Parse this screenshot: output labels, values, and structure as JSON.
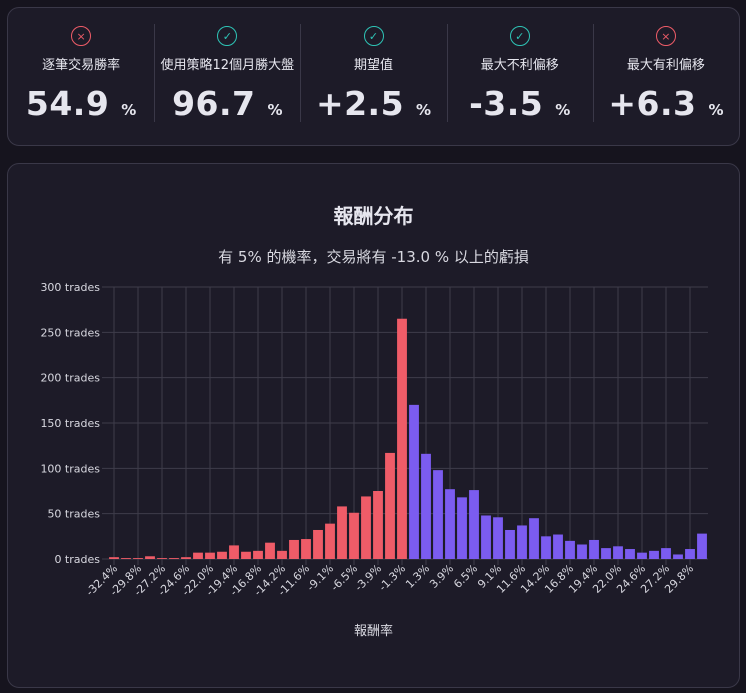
{
  "stats": [
    {
      "label": "逐筆交易勝率",
      "value": "54.9",
      "unit": "%",
      "icon": "x-icon",
      "status": "bad"
    },
    {
      "label": "使用策略12個月勝大盤",
      "value": "96.7",
      "unit": "%",
      "icon": "check-icon",
      "status": "good"
    },
    {
      "label": "期望值",
      "value": "+2.5",
      "unit": "%",
      "icon": "check-icon",
      "status": "good"
    },
    {
      "label": "最大不利偏移",
      "value": "-3.5",
      "unit": "%",
      "icon": "check-icon",
      "status": "good"
    },
    {
      "label": "最大有利偏移",
      "value": "+6.3",
      "unit": "%",
      "icon": "x-icon",
      "status": "bad"
    }
  ],
  "colors": {
    "negative": "#ef5c68",
    "positive": "#7b5cf0",
    "good": "#2ec4b6",
    "bad": "#ef5c68",
    "grid": "#3e3c4a"
  },
  "chart_data": {
    "type": "bar",
    "title": "報酬分布",
    "subtitle": "有 5% 的機率，交易將有 -13.0 % 以上的虧損",
    "xlabel": "報酬率",
    "ylabel": "",
    "ylim": [
      0,
      300
    ],
    "y_ticks": [
      0,
      50,
      100,
      150,
      200,
      250,
      300
    ],
    "y_tick_suffix": " trades",
    "x_tick_labels": [
      "-32.4%",
      "-29.8%",
      "-27.2%",
      "-24.6%",
      "-22.0%",
      "-19.4%",
      "-16.8%",
      "-14.2%",
      "-11.6%",
      "-9.1%",
      "-6.5%",
      "-3.9%",
      "-1.3%",
      "1.3%",
      "3.9%",
      "6.5%",
      "9.1%",
      "11.6%",
      "14.2%",
      "16.8%",
      "19.4%",
      "22.0%",
      "24.6%",
      "27.2%",
      "29.8%"
    ],
    "x_label_every": 2,
    "grid": true,
    "legend": "none",
    "values": [
      2,
      1,
      1,
      3,
      1,
      1,
      2,
      7,
      7,
      8,
      15,
      8,
      9,
      18,
      9,
      21,
      22,
      32,
      39,
      58,
      51,
      69,
      75,
      117,
      265,
      170,
      116,
      98,
      77,
      68,
      76,
      48,
      46,
      32,
      37,
      45,
      25,
      27,
      20,
      16,
      21,
      12,
      14,
      11,
      7,
      9,
      12,
      5,
      11,
      28
    ],
    "negative_count": 25
  }
}
